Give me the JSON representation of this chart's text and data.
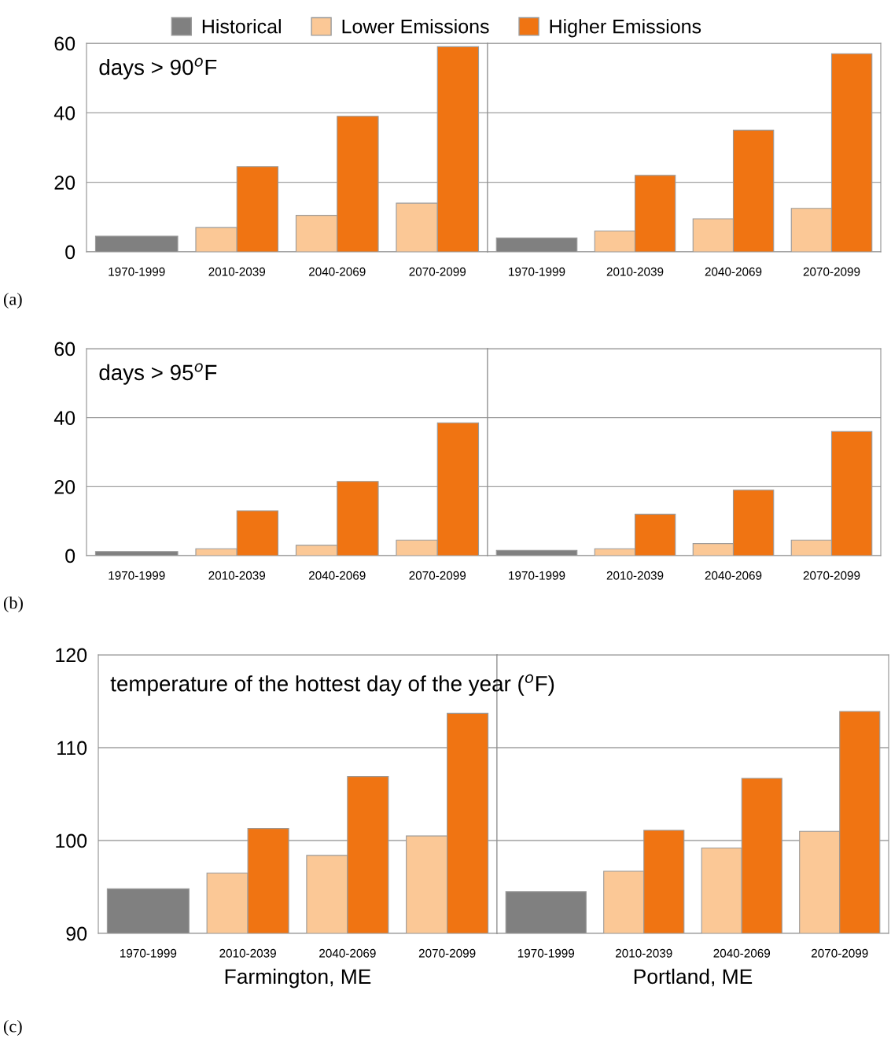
{
  "chart_data": [
    {
      "type": "bar",
      "categories": [
        "1970-1999",
        "2010-2039",
        "2040-2069",
        "2070-2099"
      ],
      "ylim": [
        0,
        60
      ],
      "yticks": [
        0,
        20,
        40,
        60
      ],
      "grid": "y",
      "legend": "top",
      "annotations": [
        "days > 90$^{o}$F",
        "(a)"
      ],
      "series": [
        {
          "name": "Historical",
          "color": "#808080",
          "values": [
            4.5,
            null,
            null,
            null
          ]
        },
        {
          "name": "Lower Emissions",
          "color": "#fbc896",
          "values": [
            null,
            7,
            10.5,
            14
          ]
        },
        {
          "name": "Higher Emissions",
          "color": "#f07412",
          "values": [
            null,
            24.5,
            39,
            59
          ]
        }
      ]
    },
    {
      "type": "bar",
      "categories": [
        "1970-1999",
        "2010-2039",
        "2040-2069",
        "2070-2099"
      ],
      "ylim": [
        0,
        60
      ],
      "yticks": [
        0,
        20,
        40,
        60
      ],
      "grid": "y",
      "tick_labels": "x",
      "series": [
        {
          "color": "#808080",
          "values": [
            4,
            null,
            null,
            null
          ]
        },
        {
          "color": "#fbc896",
          "values": [
            null,
            6,
            9.5,
            12.5
          ]
        },
        {
          "color": "#f07412",
          "values": [
            null,
            22,
            35,
            57
          ]
        }
      ]
    },
    {
      "type": "bar",
      "categories": [
        "1970-1999",
        "2010-2039",
        "2040-2069",
        "2070-2099"
      ],
      "ylim": [
        0,
        60
      ],
      "yticks": [
        0,
        20,
        40,
        60
      ],
      "grid": "y",
      "annotations": [
        "days > 95$^{o}$F",
        "(b)"
      ],
      "series": [
        {
          "color": "#808080",
          "values": [
            1.2,
            null,
            null,
            null
          ]
        },
        {
          "color": "#fbc896",
          "values": [
            null,
            2,
            3,
            4.5
          ]
        },
        {
          "color": "#f07412",
          "values": [
            null,
            13,
            21.5,
            38.5
          ]
        }
      ]
    },
    {
      "type": "bar",
      "categories": [
        "1970-1999",
        "2010-2039",
        "2040-2069",
        "2070-2099"
      ],
      "ylim": [
        0,
        60
      ],
      "yticks": [
        0,
        20,
        40,
        60
      ],
      "grid": "y",
      "tick_labels": "x",
      "series": [
        {
          "color": "#808080",
          "values": [
            1.5,
            null,
            null,
            null
          ]
        },
        {
          "color": "#fbc896",
          "values": [
            null,
            2,
            3.5,
            4.5
          ]
        },
        {
          "color": "#f07412",
          "values": [
            null,
            12,
            19,
            36
          ]
        }
      ]
    },
    {
      "type": "bar",
      "categories": [
        "1970-1999",
        "2010-2039",
        "2040-2069",
        "2070-2099"
      ],
      "ylim": [
        90,
        120
      ],
      "yticks": [
        90,
        100,
        110,
        120
      ],
      "grid": "y",
      "xlabel": "Farmington, ME",
      "annotations": [
        "temperature of the hottest day of the year ($^{o}$F)",
        "(c)"
      ],
      "series": [
        {
          "color": "#808080",
          "values": [
            94.8,
            null,
            null,
            null
          ]
        },
        {
          "color": "#fbc896",
          "values": [
            null,
            96.5,
            98.4,
            100.5
          ]
        },
        {
          "color": "#f07412",
          "values": [
            null,
            101.3,
            106.9,
            113.7
          ]
        }
      ]
    },
    {
      "type": "bar",
      "categories": [
        "1970-1999",
        "2010-2039",
        "2040-2069",
        "2070-2099"
      ],
      "ylim": [
        90,
        120
      ],
      "yticks": [
        90,
        100,
        110,
        120
      ],
      "grid": "y",
      "tick_labels": "x",
      "xlabel": "Portland, ME",
      "series": [
        {
          "color": "#808080",
          "values": [
            94.5,
            null,
            null,
            null
          ]
        },
        {
          "color": "#fbc896",
          "values": [
            null,
            96.7,
            99.2,
            101
          ]
        },
        {
          "color": "#f07412",
          "values": [
            null,
            101.1,
            106.7,
            113.9
          ]
        }
      ]
    }
  ]
}
